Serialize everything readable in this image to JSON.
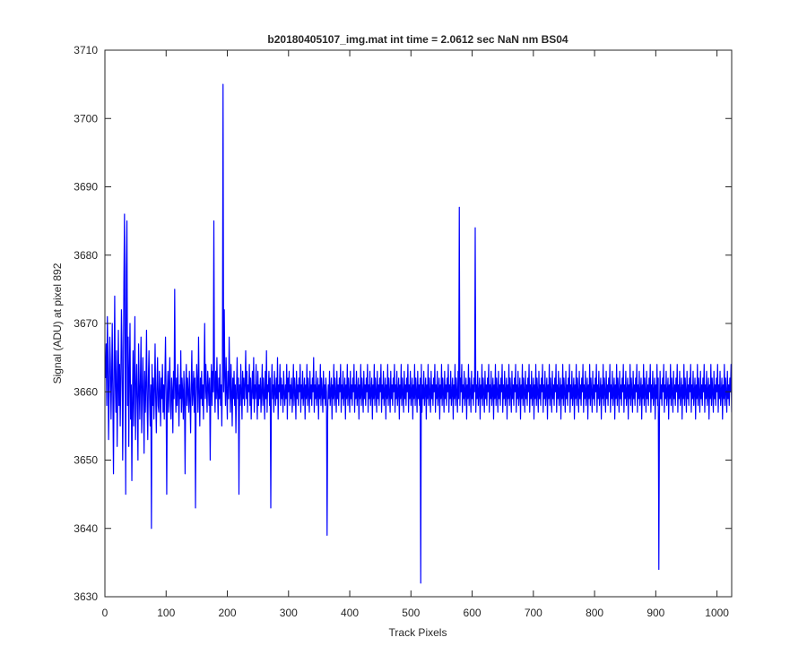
{
  "chart_data": {
    "type": "line",
    "title": "b20180405107_img.mat int time = 2.0612 sec  NaN nm BS04",
    "xlabel": "Track Pixels",
    "ylabel": "Signal (ADU) at pixel 892",
    "xlim": [
      0,
      1024
    ],
    "ylim": [
      3630,
      3710
    ],
    "xticks": [
      0,
      100,
      200,
      300,
      400,
      500,
      600,
      700,
      800,
      900,
      1000
    ],
    "yticks": [
      3630,
      3640,
      3650,
      3660,
      3670,
      3680,
      3690,
      3700,
      3710
    ],
    "grid": false,
    "series": [
      {
        "color": "#0000ff",
        "x_start": 1,
        "x_step": 1,
        "values": [
          3662,
          3667,
          3658,
          3671,
          3665,
          3653,
          3660,
          3668,
          3664,
          3656,
          3662,
          3670,
          3659,
          3648,
          3663,
          3674,
          3661,
          3657,
          3666,
          3652,
          3660,
          3669,
          3658,
          3664,
          3655,
          3662,
          3672,
          3666,
          3650,
          3660,
          3676,
          3686,
          3665,
          3645,
          3678,
          3685,
          3658,
          3668,
          3652,
          3663,
          3670,
          3656,
          3661,
          3647,
          3659,
          3666,
          3655,
          3663,
          3671,
          3653,
          3660,
          3664,
          3658,
          3650,
          3667,
          3661,
          3656,
          3662,
          3668,
          3654,
          3659,
          3665,
          3660,
          3651,
          3663,
          3657,
          3661,
          3669,
          3658,
          3653,
          3662,
          3666,
          3659,
          3655,
          3661,
          3640,
          3664,
          3658,
          3662,
          3656,
          3660,
          3667,
          3659,
          3654,
          3661,
          3665,
          3658,
          3657,
          3663,
          3660,
          3655,
          3662,
          3659,
          3664,
          3657,
          3661,
          3656,
          3662,
          3668,
          3659,
          3645,
          3660,
          3663,
          3657,
          3661,
          3665,
          3658,
          3656,
          3662,
          3660,
          3654,
          3663,
          3659,
          3675,
          3661,
          3657,
          3662,
          3658,
          3664,
          3660,
          3655,
          3661,
          3659,
          3666,
          3657,
          3662,
          3660,
          3656,
          3663,
          3659,
          3648,
          3661,
          3664,
          3658,
          3662,
          3660,
          3657,
          3663,
          3659,
          3654,
          3661,
          3666,
          3658,
          3660,
          3663,
          3657,
          3662,
          3643,
          3659,
          3664,
          3661,
          3657,
          3668,
          3660,
          3655,
          3662,
          3659,
          3663,
          3658,
          3661,
          3656,
          3662,
          3670,
          3659,
          3664,
          3660,
          3657,
          3663,
          3661,
          3658,
          3662,
          3650,
          3660,
          3664,
          3658,
          3663,
          3660,
          3685,
          3661,
          3657,
          3663,
          3659,
          3665,
          3660,
          3656,
          3662,
          3659,
          3664,
          3658,
          3661,
          3655,
          3663,
          3705,
          3660,
          3672,
          3662,
          3658,
          3665,
          3660,
          3656,
          3663,
          3659,
          3668,
          3661,
          3657,
          3664,
          3660,
          3655,
          3662,
          3659,
          3663,
          3658,
          3661,
          3654,
          3660,
          3665,
          3659,
          3662,
          3645,
          3661,
          3658,
          3664,
          3660,
          3656,
          3663,
          3659,
          3662,
          3658,
          3661,
          3666,
          3659,
          3663,
          3657,
          3661,
          3660,
          3664,
          3658,
          3662,
          3656,
          3660,
          3663,
          3659,
          3665,
          3657,
          3661,
          3659,
          3664,
          3660,
          3656,
          3663,
          3658,
          3661,
          3659,
          3662,
          3657,
          3660,
          3664,
          3658,
          3662,
          3660,
          3656,
          3663,
          3659,
          3666,
          3657,
          3661,
          3660,
          3663,
          3658,
          3662,
          3643,
          3660,
          3664,
          3659,
          3661,
          3657,
          3663,
          3660,
          3658,
          3662,
          3659,
          3665,
          3656,
          3661,
          3660,
          3664,
          3658,
          3662,
          3659,
          3661,
          3657,
          3663,
          3660,
          3658,
          3661,
          3659,
          3664,
          3656,
          3662,
          3660,
          3663,
          3658,
          3661,
          3659,
          3662,
          3657,
          3660,
          3664,
          3658,
          3662,
          3660,
          3656,
          3663,
          3659,
          3661,
          3658,
          3662,
          3660,
          3664,
          3657,
          3661,
          3659,
          3663,
          3658,
          3660,
          3662,
          3656,
          3661,
          3659,
          3664,
          3658,
          3662,
          3660,
          3657,
          3663,
          3659,
          3661,
          3658,
          3662,
          3660,
          3665,
          3657,
          3661,
          3659,
          3663,
          3658,
          3660,
          3662,
          3656,
          3661,
          3659,
          3664,
          3658,
          3662,
          3660,
          3657,
          3663,
          3659,
          3661,
          3658,
          3662,
          3660,
          3639,
          3657,
          3661,
          3659,
          3663,
          3658,
          3660,
          3662,
          3656,
          3661,
          3659,
          3664,
          3658,
          3662,
          3660,
          3657,
          3663,
          3659,
          3661,
          3658,
          3662,
          3660,
          3664,
          3657,
          3661,
          3659,
          3663,
          3658,
          3660,
          3662,
          3656,
          3661,
          3659,
          3664,
          3658,
          3662,
          3660,
          3657,
          3663,
          3659,
          3661,
          3658,
          3662,
          3660,
          3664,
          3657,
          3661,
          3659,
          3663,
          3658,
          3660,
          3662,
          3656,
          3661,
          3659,
          3664,
          3658,
          3662,
          3660,
          3657,
          3663,
          3659,
          3661,
          3658,
          3662,
          3660,
          3664,
          3657,
          3661,
          3659,
          3663,
          3658,
          3660,
          3662,
          3656,
          3661,
          3659,
          3664,
          3658,
          3662,
          3660,
          3657,
          3663,
          3659,
          3661,
          3658,
          3662,
          3660,
          3664,
          3657,
          3661,
          3659,
          3663,
          3658,
          3660,
          3662,
          3656,
          3661,
          3659,
          3664,
          3658,
          3662,
          3660,
          3657,
          3663,
          3659,
          3661,
          3658,
          3662,
          3660,
          3664,
          3657,
          3661,
          3659,
          3663,
          3658,
          3660,
          3662,
          3656,
          3661,
          3659,
          3664,
          3658,
          3662,
          3660,
          3657,
          3663,
          3659,
          3661,
          3658,
          3662,
          3660,
          3664,
          3657,
          3661,
          3659,
          3663,
          3658,
          3660,
          3662,
          3656,
          3661,
          3659,
          3664,
          3658,
          3662,
          3660,
          3657,
          3663,
          3659,
          3661,
          3658,
          3662,
          3632,
          3664,
          3657,
          3661,
          3659,
          3663,
          3658,
          3660,
          3662,
          3656,
          3661,
          3659,
          3664,
          3658,
          3662,
          3660,
          3657,
          3663,
          3659,
          3661,
          3658,
          3662,
          3660,
          3664,
          3657,
          3661,
          3659,
          3663,
          3658,
          3660,
          3662,
          3656,
          3661,
          3659,
          3664,
          3658,
          3662,
          3660,
          3657,
          3663,
          3659,
          3661,
          3658,
          3662,
          3660,
          3664,
          3657,
          3661,
          3659,
          3663,
          3658,
          3660,
          3662,
          3656,
          3661,
          3659,
          3664,
          3658,
          3662,
          3660,
          3657,
          3663,
          3659,
          3687,
          3658,
          3662,
          3660,
          3664,
          3657,
          3661,
          3659,
          3663,
          3658,
          3660,
          3662,
          3656,
          3661,
          3659,
          3664,
          3658,
          3662,
          3660,
          3657,
          3663,
          3659,
          3661,
          3658,
          3662,
          3660,
          3684,
          3657,
          3661,
          3659,
          3663,
          3658,
          3660,
          3662,
          3656,
          3661,
          3659,
          3664,
          3658,
          3662,
          3660,
          3657,
          3663,
          3659,
          3661,
          3658,
          3662,
          3660,
          3664,
          3657,
          3661,
          3659,
          3663,
          3658,
          3660,
          3662,
          3656,
          3661,
          3659,
          3664,
          3658,
          3662,
          3660,
          3657,
          3663,
          3659,
          3661,
          3658,
          3662,
          3660,
          3664,
          3657,
          3661,
          3659,
          3663,
          3658,
          3660,
          3662,
          3656,
          3661,
          3659,
          3664,
          3658,
          3662,
          3660,
          3657,
          3663,
          3659,
          3661,
          3658,
          3662,
          3660,
          3664,
          3657,
          3661,
          3659,
          3663,
          3658,
          3660,
          3662,
          3656,
          3661,
          3659,
          3664,
          3658,
          3662,
          3660,
          3657,
          3663,
          3659,
          3661,
          3658,
          3662,
          3660,
          3664,
          3657,
          3661,
          3659,
          3663,
          3658,
          3660,
          3662,
          3656,
          3661,
          3659,
          3664,
          3658,
          3662,
          3660,
          3657,
          3663,
          3659,
          3661,
          3658,
          3662,
          3660,
          3664,
          3657,
          3661,
          3659,
          3663,
          3658,
          3660,
          3662,
          3656,
          3661,
          3659,
          3664,
          3658,
          3662,
          3660,
          3657,
          3663,
          3659,
          3661,
          3658,
          3662,
          3660,
          3664,
          3657,
          3661,
          3659,
          3663,
          3658,
          3660,
          3662,
          3656,
          3661,
          3659,
          3664,
          3658,
          3662,
          3660,
          3657,
          3663,
          3659,
          3661,
          3658,
          3662,
          3660,
          3664,
          3657,
          3661,
          3659,
          3663,
          3658,
          3660,
          3662,
          3656,
          3661,
          3659,
          3664,
          3658,
          3662,
          3660,
          3657,
          3663,
          3659,
          3661,
          3658,
          3662,
          3660,
          3664,
          3657,
          3661,
          3659,
          3663,
          3658,
          3660,
          3662,
          3656,
          3661,
          3659,
          3664,
          3658,
          3662,
          3660,
          3657,
          3663,
          3659,
          3661,
          3658,
          3662,
          3660,
          3664,
          3657,
          3661,
          3659,
          3663,
          3658,
          3660,
          3662,
          3656,
          3661,
          3659,
          3664,
          3658,
          3662,
          3660,
          3657,
          3663,
          3659,
          3661,
          3658,
          3662,
          3660,
          3664,
          3657,
          3661,
          3659,
          3663,
          3658,
          3660,
          3662,
          3656,
          3661,
          3659,
          3664,
          3658,
          3662,
          3660,
          3657,
          3663,
          3659,
          3661,
          3658,
          3662,
          3660,
          3664,
          3657,
          3661,
          3659,
          3663,
          3658,
          3660,
          3662,
          3656,
          3661,
          3659,
          3664,
          3658,
          3662,
          3660,
          3657,
          3663,
          3659,
          3661,
          3658,
          3662,
          3660,
          3664,
          3657,
          3661,
          3659,
          3663,
          3658,
          3660,
          3662,
          3656,
          3661,
          3659,
          3664,
          3658,
          3662,
          3660,
          3657,
          3663,
          3659,
          3661,
          3658,
          3662,
          3660,
          3664,
          3657,
          3661,
          3659,
          3663,
          3658,
          3660,
          3662,
          3656,
          3661,
          3659,
          3664,
          3658,
          3662,
          3634,
          3657,
          3663,
          3659,
          3661,
          3658,
          3662,
          3660,
          3664,
          3657,
          3661,
          3659,
          3663,
          3658,
          3660,
          3662,
          3656,
          3661,
          3659,
          3664,
          3658,
          3662,
          3660,
          3657,
          3663,
          3659,
          3661,
          3658,
          3662,
          3660,
          3664,
          3657,
          3661,
          3659,
          3663,
          3658,
          3660,
          3662,
          3656,
          3661,
          3659,
          3664,
          3658,
          3662,
          3660,
          3657,
          3663,
          3659,
          3661,
          3658,
          3662,
          3660,
          3664,
          3657,
          3661,
          3659,
          3663,
          3658,
          3660,
          3662,
          3656,
          3661,
          3659,
          3664,
          3658,
          3662,
          3660,
          3657,
          3663,
          3659,
          3661,
          3658,
          3662,
          3660,
          3664,
          3657,
          3661,
          3659,
          3663,
          3658,
          3660,
          3662,
          3656,
          3661,
          3659,
          3664,
          3658,
          3662,
          3660,
          3657,
          3663,
          3659,
          3661,
          3658,
          3662,
          3660,
          3664,
          3657,
          3661,
          3659,
          3663,
          3658,
          3660,
          3662,
          3656,
          3661,
          3659,
          3664,
          3658,
          3662,
          3660,
          3657,
          3663,
          3659,
          3661,
          3658,
          3662,
          3660,
          3664,
          3657,
          3661,
          3659,
          3663,
          3658,
          3660,
          3662,
          3656,
          3661,
          3659,
          3664,
          3658,
          3662,
          3660,
          3657,
          3663,
          3659,
          3661,
          3658,
          3662,
          3660,
          3664,
          3657,
          3661,
          3659,
          3663,
          3658,
          3660,
          3662,
          3656,
          3661,
          3659,
          3664,
          3658,
          3662,
          3660,
          3657,
          3663,
          3659,
          3661,
          3658,
          3662,
          3660,
          3664,
          3657,
          3661,
          3659,
          3663,
          3658,
          3660,
          3662,
          3656,
          3661,
          3659,
          3664,
          3658,
          3662,
          3660,
          3657,
          3663,
          3659,
          3661,
          3658
        ]
      }
    ]
  }
}
